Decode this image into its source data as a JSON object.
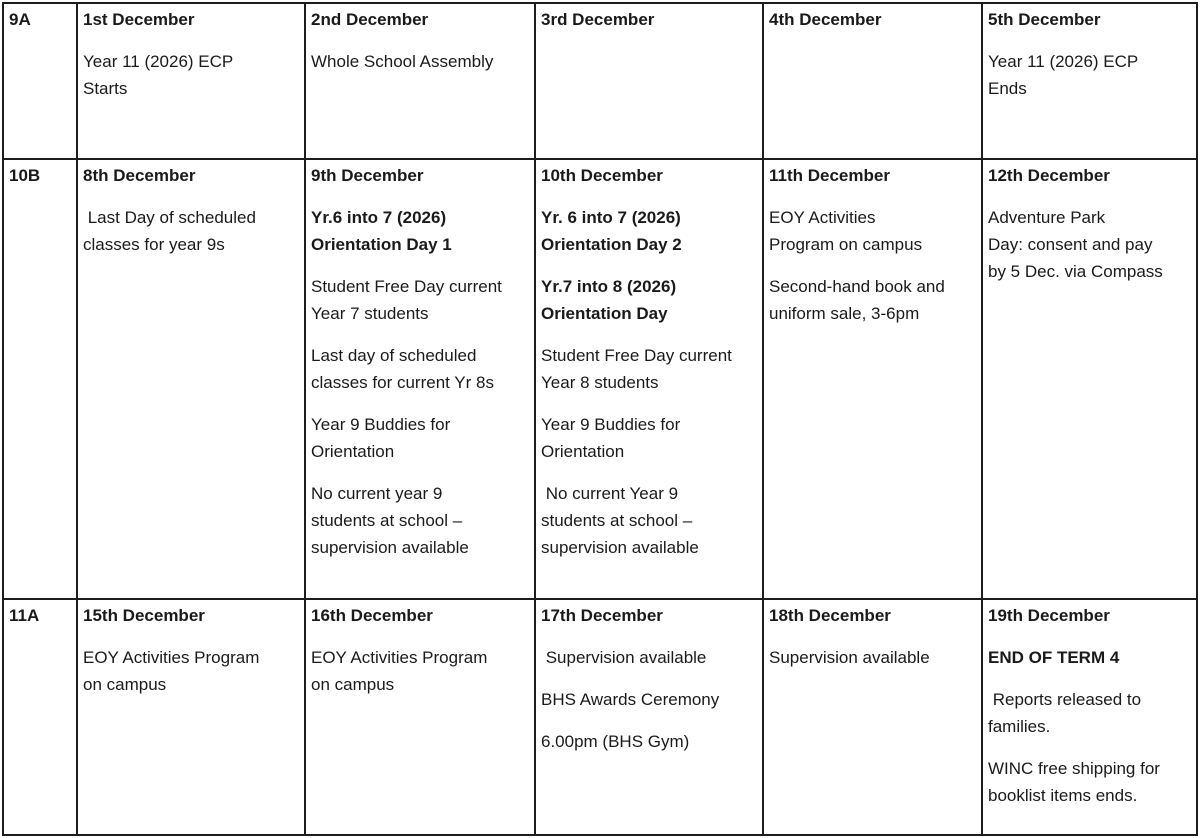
{
  "colors": {
    "background": "#ffffff",
    "border": "#1d1d1d",
    "text": "#1a1a1a"
  },
  "table": {
    "rows": [
      {
        "label": "9A",
        "cells": [
          {
            "date": "1st December",
            "paragraphs": [
              {
                "text": "Year 11 (2026) ECP\nStarts",
                "bold": false
              }
            ]
          },
          {
            "date": "2nd December",
            "paragraphs": [
              {
                "text": "Whole School Assembly",
                "bold": false
              }
            ]
          },
          {
            "date": "3rd December",
            "paragraphs": []
          },
          {
            "date": "4th December",
            "paragraphs": []
          },
          {
            "date": "5th December",
            "paragraphs": [
              {
                "text": "Year 11 (2026) ECP\nEnds",
                "bold": false
              }
            ]
          }
        ]
      },
      {
        "label": "10B",
        "cells": [
          {
            "date": "8th December",
            "paragraphs": [
              {
                "text": " Last Day of scheduled\nclasses for year 9s",
                "bold": false
              }
            ]
          },
          {
            "date": "9th December",
            "paragraphs": [
              {
                "text": "Yr.6 into 7 (2026)\nOrientation Day 1",
                "bold": true
              },
              {
                "text": "Student Free Day current\nYear 7 students",
                "bold": false
              },
              {
                "text": "Last day of scheduled\nclasses for current Yr 8s",
                "bold": false
              },
              {
                "text": "Year 9 Buddies for\nOrientation",
                "bold": false
              },
              {
                "text": "No current year 9\nstudents at school –\nsupervision available",
                "bold": false
              }
            ]
          },
          {
            "date": "10th December",
            "paragraphs": [
              {
                "text": "Yr. 6 into 7 (2026)\nOrientation Day 2",
                "bold": true
              },
              {
                "text": "Yr.7 into 8 (2026)\nOrientation Day",
                "bold": true
              },
              {
                "text": "Student Free Day current\nYear 8 students",
                "bold": false
              },
              {
                "text": "Year 9 Buddies for\nOrientation",
                "bold": false
              },
              {
                "text": " No current Year 9\nstudents at school –\nsupervision available",
                "bold": false
              }
            ]
          },
          {
            "date": "11th December",
            "paragraphs": [
              {
                "text": "EOY Activities\nProgram on campus",
                "bold": false
              },
              {
                "text": "Second-hand book and\nuniform sale, 3-6pm",
                "bold": false
              }
            ]
          },
          {
            "date": "12th December",
            "paragraphs": [
              {
                "text": "Adventure Park\nDay: consent and pay\nby 5 Dec. via Compass",
                "bold": false
              }
            ]
          }
        ]
      },
      {
        "label": "11A",
        "cells": [
          {
            "date": "15th December",
            "paragraphs": [
              {
                "text": "EOY Activities Program\non campus",
                "bold": false
              }
            ]
          },
          {
            "date": "16th December",
            "paragraphs": [
              {
                "text": "EOY Activities Program\non campus",
                "bold": false
              }
            ]
          },
          {
            "date": "17th December",
            "paragraphs": [
              {
                "text": " Supervision available",
                "bold": false
              },
              {
                "text": "BHS Awards Ceremony",
                "bold": false
              },
              {
                "text": "6.00pm (BHS Gym)",
                "bold": false
              }
            ]
          },
          {
            "date": "18th December",
            "paragraphs": [
              {
                "text": "Supervision available",
                "bold": false
              }
            ]
          },
          {
            "date": "19th December",
            "paragraphs": [
              {
                "text": "END OF TERM 4",
                "bold": true
              },
              {
                "text": " Reports released to\nfamilies.",
                "bold": false
              },
              {
                "text": "WINC free shipping for\nbooklist items ends.",
                "bold": false
              }
            ]
          }
        ]
      }
    ]
  }
}
